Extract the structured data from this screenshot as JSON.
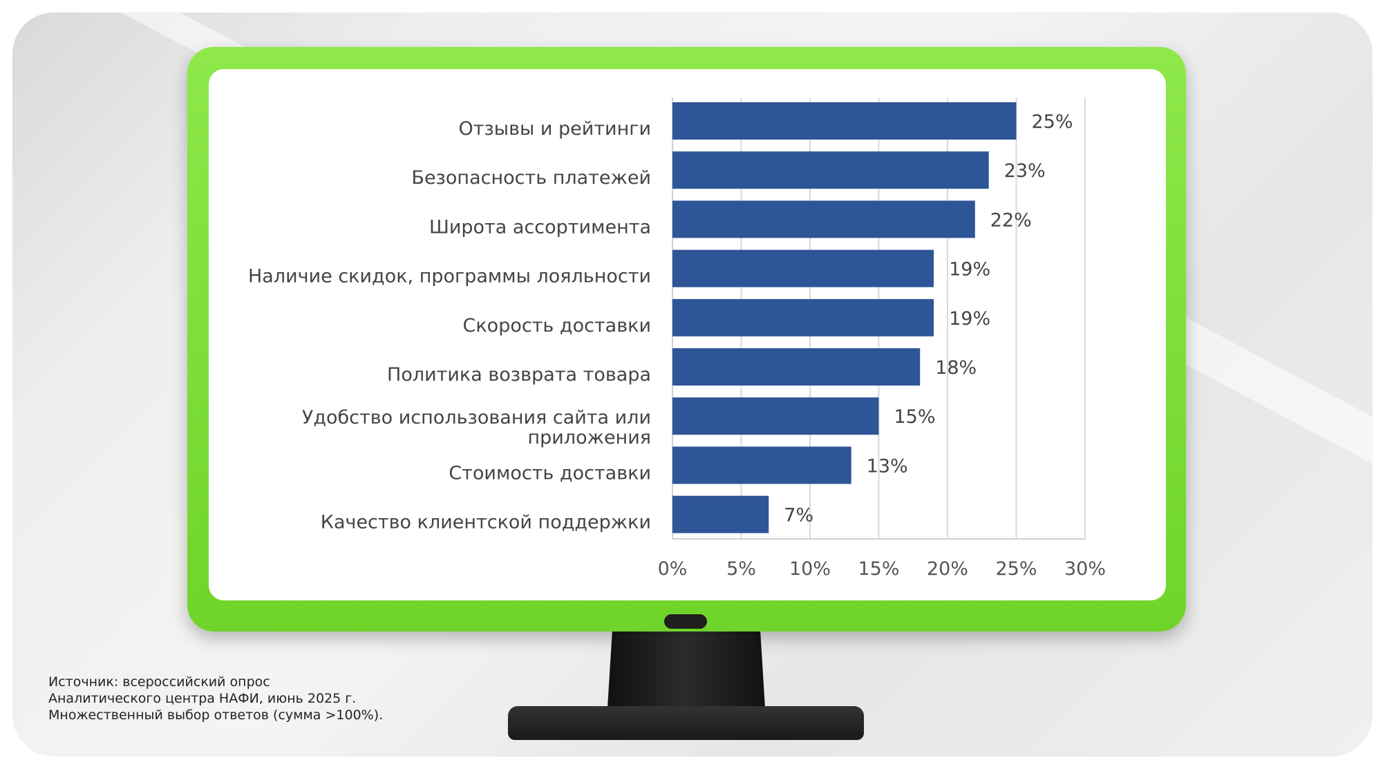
{
  "chart_data": {
    "type": "bar",
    "orientation": "horizontal",
    "categories": [
      "Отзывы и рейтинги",
      "Безопасность платежей",
      "Широта ассортимента",
      "Наличие скидок, программы лояльности",
      "Скорость доставки",
      "Политика возврата товара",
      "Удобство использования сайта или приложения",
      "Стоимость доставки",
      "Качество клиентской поддержки"
    ],
    "category_lines": [
      [
        "Отзывы и рейтинги"
      ],
      [
        "Безопасность платежей"
      ],
      [
        "Широта ассортимента"
      ],
      [
        "Наличие скидок, программы лояльности"
      ],
      [
        "Скорость доставки"
      ],
      [
        "Политика возврата товара"
      ],
      [
        "Удобство использования сайта или",
        "приложения"
      ],
      [
        "Стоимость доставки"
      ],
      [
        "Качество  клиентской поддержки"
      ]
    ],
    "values": [
      25,
      23,
      22,
      19,
      19,
      18,
      15,
      13,
      7
    ],
    "value_labels": [
      "25%",
      "23%",
      "22%",
      "19%",
      "19%",
      "18%",
      "15%",
      "13%",
      "7%"
    ],
    "xlim": [
      0,
      30
    ],
    "x_ticks": [
      "0%",
      "5%",
      "10%",
      "15%",
      "20%",
      "25%",
      "30%"
    ],
    "grid": true,
    "bar_color": "#2E5597",
    "title": "",
    "xlabel": "",
    "ylabel": ""
  },
  "source": {
    "lines": [
      "Источник: всероссийский опрос",
      "Аналитического центра НАФИ, июнь 2025 г.",
      "Множественный выбор ответов (сумма >100%)."
    ]
  },
  "colors": {
    "frame": "#7AD93A",
    "stand": "#1E1E1E"
  }
}
